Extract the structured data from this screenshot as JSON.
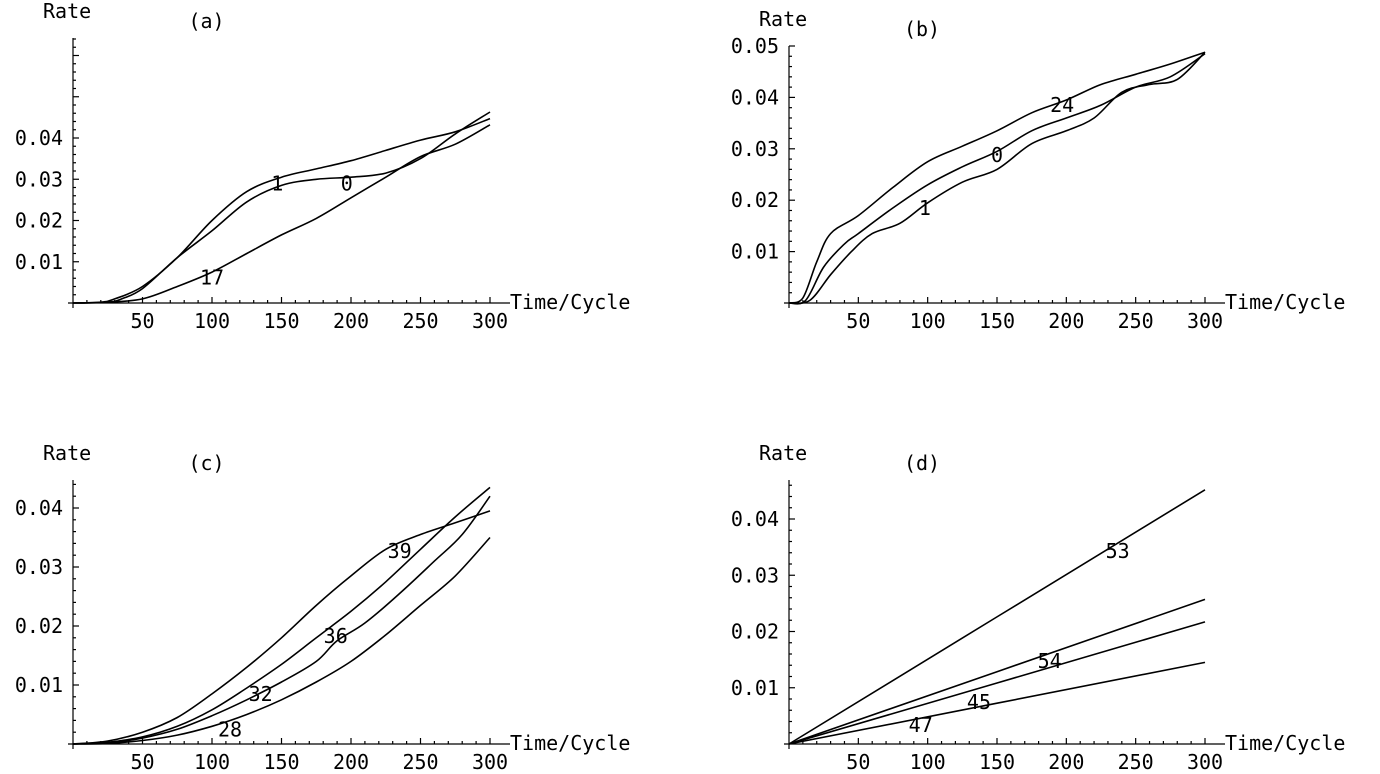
{
  "chart_data": [
    {
      "type": "line",
      "panel": "(a)",
      "ylabel": "Rate",
      "xlabel": "Time/Cycle",
      "xlim": [
        0,
        300
      ],
      "ylim": [
        0,
        0.047
      ],
      "xticks": [
        "50",
        "100",
        "150",
        "200",
        "250",
        "300"
      ],
      "yticks": [
        "0.01",
        "0.02",
        "0.03",
        "0.04"
      ],
      "grid": false,
      "series": [
        {
          "name": "1",
          "x": [
            0,
            20,
            30,
            50,
            75,
            100,
            125,
            150,
            175,
            200,
            225,
            250,
            275,
            300
          ],
          "y": [
            0,
            0.0002,
            0.001,
            0.004,
            0.011,
            0.02,
            0.027,
            0.0305,
            0.0325,
            0.0345,
            0.037,
            0.0395,
            0.0415,
            0.0447
          ]
        },
        {
          "name": "0",
          "x": [
            0,
            25,
            35,
            50,
            75,
            100,
            125,
            150,
            175,
            200,
            225,
            250,
            275,
            300
          ],
          "y": [
            0,
            0.0002,
            0.001,
            0.0035,
            0.011,
            0.0175,
            0.0245,
            0.0285,
            0.03,
            0.0305,
            0.0315,
            0.035,
            0.041,
            0.0463
          ]
        },
        {
          "name": "17",
          "x": [
            0,
            25,
            50,
            75,
            100,
            125,
            150,
            175,
            200,
            225,
            250,
            275,
            300
          ],
          "y": [
            0,
            0.0002,
            0.001,
            0.004,
            0.0075,
            0.012,
            0.0165,
            0.0205,
            0.0255,
            0.0305,
            0.0355,
            0.0385,
            0.0432
          ]
        }
      ],
      "annotations": [
        {
          "text": "1",
          "x": 147,
          "y": 0.029
        },
        {
          "text": "0",
          "x": 197,
          "y": 0.029
        },
        {
          "text": "17",
          "x": 100,
          "y": 0.0062
        }
      ]
    },
    {
      "type": "line",
      "panel": "(b)",
      "ylabel": "Rate",
      "xlabel": "Time/Cycle",
      "xlim": [
        0,
        300
      ],
      "ylim": [
        0,
        0.05
      ],
      "xticks": [
        "50",
        "100",
        "150",
        "200",
        "250",
        "300"
      ],
      "yticks": [
        "0.01",
        "0.02",
        "0.03",
        "0.04",
        "0.05"
      ],
      "grid": false,
      "series": [
        {
          "name": "24",
          "x": [
            0,
            10,
            20,
            30,
            50,
            75,
            100,
            125,
            150,
            175,
            200,
            225,
            250,
            275,
            300
          ],
          "y": [
            0,
            0.001,
            0.008,
            0.0135,
            0.017,
            0.0225,
            0.0275,
            0.0305,
            0.0335,
            0.037,
            0.0395,
            0.0425,
            0.0445,
            0.0465,
            0.0488
          ]
        },
        {
          "name": "0",
          "x": [
            0,
            12,
            25,
            40,
            50,
            75,
            100,
            125,
            150,
            175,
            200,
            225,
            250,
            275,
            300
          ],
          "y": [
            0,
            0.0005,
            0.007,
            0.0115,
            0.0135,
            0.0185,
            0.023,
            0.0265,
            0.0295,
            0.0335,
            0.036,
            0.0385,
            0.042,
            0.044,
            0.0485
          ]
        },
        {
          "name": "1",
          "x": [
            0,
            15,
            30,
            45,
            60,
            80,
            100,
            125,
            150,
            175,
            200,
            220,
            240,
            260,
            280,
            300
          ],
          "y": [
            0,
            0.0005,
            0.0055,
            0.01,
            0.0135,
            0.0155,
            0.0195,
            0.0235,
            0.026,
            0.031,
            0.0335,
            0.036,
            0.041,
            0.0425,
            0.0435,
            0.0488
          ]
        }
      ],
      "annotations": [
        {
          "text": "24",
          "x": 197,
          "y": 0.0385
        },
        {
          "text": "0",
          "x": 150,
          "y": 0.0288
        },
        {
          "text": "1",
          "x": 98,
          "y": 0.0185
        }
      ]
    },
    {
      "type": "line",
      "panel": "(c)",
      "ylabel": "Rate",
      "xlabel": "Time/Cycle",
      "xlim": [
        0,
        300
      ],
      "ylim": [
        0,
        0.045
      ],
      "xticks": [
        "50",
        "100",
        "150",
        "200",
        "250",
        "300"
      ],
      "yticks": [
        "0.01",
        "0.02",
        "0.03",
        "0.04"
      ],
      "grid": false,
      "series": [
        {
          "name": "39",
          "x": [
            0,
            25,
            50,
            75,
            100,
            125,
            150,
            175,
            200,
            225,
            250,
            275,
            300
          ],
          "y": [
            0,
            0.0005,
            0.002,
            0.0045,
            0.0085,
            0.013,
            0.018,
            0.0235,
            0.0285,
            0.033,
            0.0355,
            0.0375,
            0.0395
          ]
        },
        {
          "name": "36",
          "x": [
            0,
            25,
            50,
            75,
            100,
            125,
            150,
            175,
            200,
            225,
            250,
            275,
            300
          ],
          "y": [
            0,
            0.0003,
            0.0012,
            0.003,
            0.0058,
            0.0095,
            0.0135,
            0.018,
            0.0225,
            0.0275,
            0.033,
            0.0385,
            0.0435
          ]
        },
        {
          "name": "32",
          "x": [
            0,
            25,
            50,
            75,
            100,
            125,
            150,
            175,
            190,
            210,
            235,
            260,
            280,
            300
          ],
          "y": [
            0,
            0.0002,
            0.001,
            0.0025,
            0.0048,
            0.0075,
            0.0105,
            0.014,
            0.0175,
            0.0205,
            0.0255,
            0.031,
            0.0355,
            0.042
          ]
        },
        {
          "name": "28",
          "x": [
            0,
            25,
            50,
            75,
            100,
            125,
            150,
            175,
            200,
            225,
            250,
            275,
            300
          ],
          "y": [
            0,
            0.0001,
            0.0006,
            0.0015,
            0.003,
            0.005,
            0.0075,
            0.0105,
            0.014,
            0.0185,
            0.0235,
            0.0285,
            0.035
          ]
        }
      ],
      "annotations": [
        {
          "text": "39",
          "x": 235,
          "y": 0.0327
        },
        {
          "text": "36",
          "x": 189,
          "y": 0.0183
        },
        {
          "text": "32",
          "x": 135,
          "y": 0.0085
        },
        {
          "text": "28",
          "x": 113,
          "y": 0.0025
        }
      ]
    },
    {
      "type": "line",
      "panel": "(d)",
      "ylabel": "Rate",
      "xlabel": "Time/Cycle",
      "xlim": [
        0,
        300
      ],
      "ylim": [
        0,
        0.047
      ],
      "xticks": [
        "50",
        "100",
        "150",
        "200",
        "250",
        "300"
      ],
      "yticks": [
        "0.01",
        "0.02",
        "0.03",
        "0.04"
      ],
      "grid": false,
      "series": [
        {
          "name": "53",
          "x": [
            0,
            300
          ],
          "y": [
            0,
            0.0452
          ]
        },
        {
          "name": "54",
          "x": [
            0,
            300
          ],
          "y": [
            0,
            0.0257
          ]
        },
        {
          "name": "45",
          "x": [
            0,
            300
          ],
          "y": [
            0,
            0.0217
          ]
        },
        {
          "name": "47",
          "x": [
            0,
            300
          ],
          "y": [
            0,
            0.0145
          ]
        }
      ],
      "annotations": [
        {
          "text": "53",
          "x": 237,
          "y": 0.0343
        },
        {
          "text": "54",
          "x": 188,
          "y": 0.0148
        },
        {
          "text": "45",
          "x": 137,
          "y": 0.0075
        },
        {
          "text": "47",
          "x": 95,
          "y": 0.0034
        }
      ]
    }
  ]
}
